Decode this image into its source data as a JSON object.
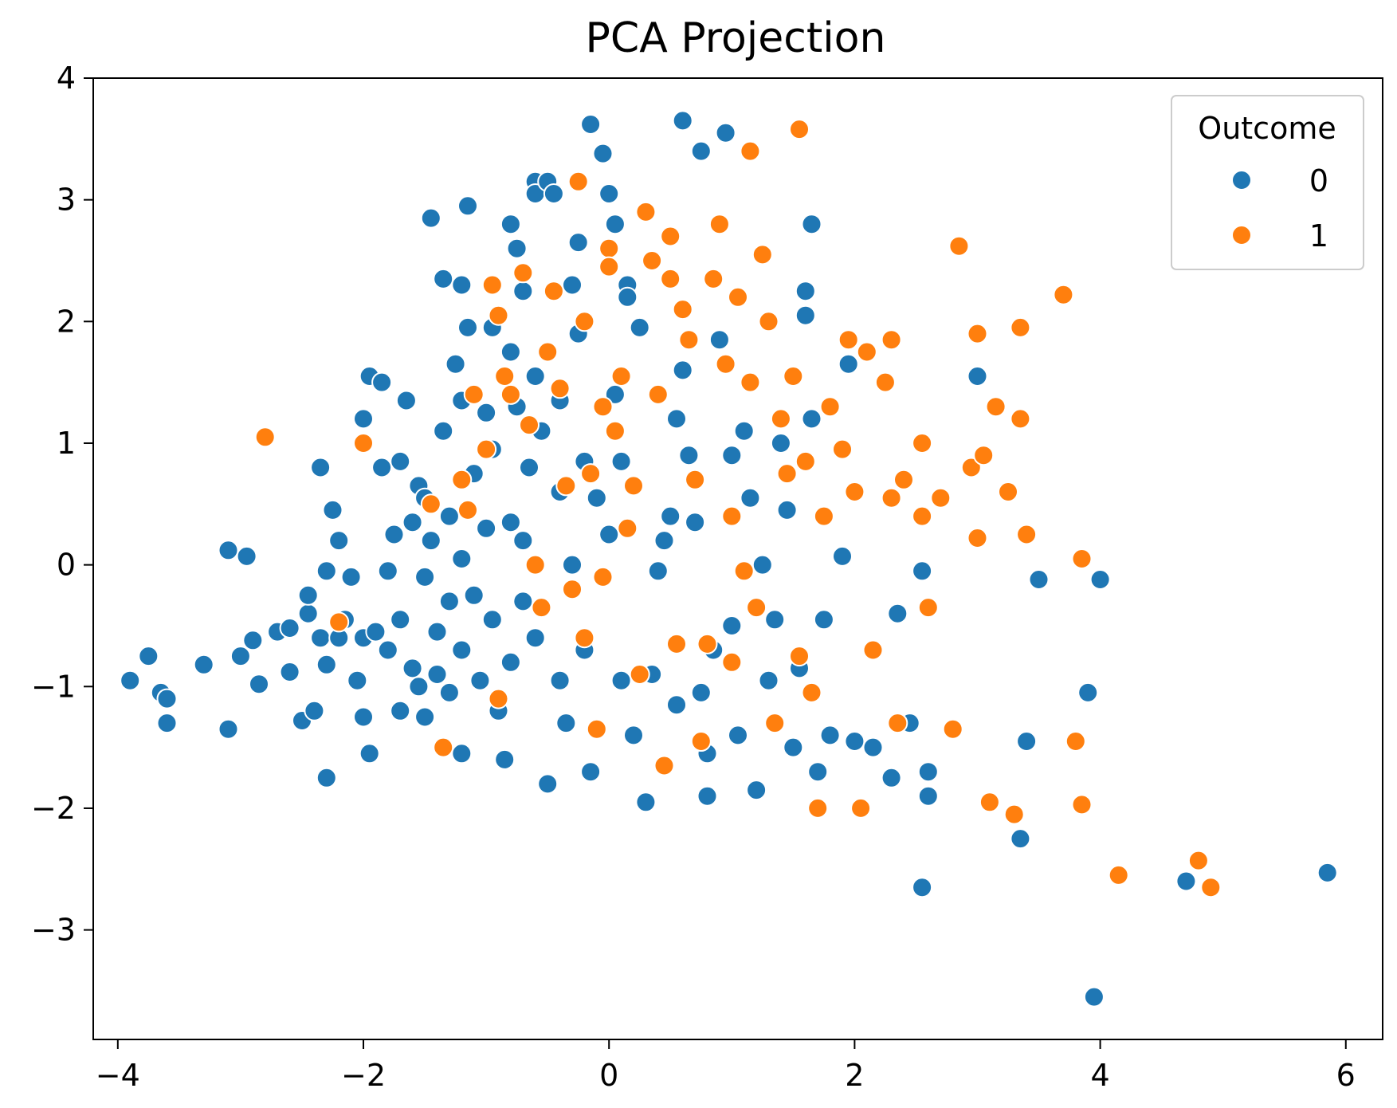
{
  "chart_data": {
    "type": "scatter",
    "title": "PCA Projection",
    "xlabel": "",
    "ylabel": "",
    "xlim": [
      -4.2,
      6.3
    ],
    "ylim": [
      -3.9,
      4.0
    ],
    "x_ticks": [
      -4,
      -2,
      0,
      2,
      4,
      6
    ],
    "y_ticks": [
      -3,
      -2,
      -1,
      0,
      1,
      2,
      3,
      4
    ],
    "x_tick_labels": [
      "−4",
      "−2",
      "0",
      "2",
      "4",
      "6"
    ],
    "y_tick_labels": [
      "−3",
      "−2",
      "−1",
      "0",
      "1",
      "2",
      "3",
      "4"
    ],
    "grid": false,
    "legend": {
      "title": "Outcome",
      "position": "top-right"
    },
    "series": [
      {
        "name": "0",
        "color": "#1f77b4",
        "points": [
          [
            -3.9,
            -0.95
          ],
          [
            -3.75,
            -0.75
          ],
          [
            -3.65,
            -1.05
          ],
          [
            -3.6,
            -1.1
          ],
          [
            -3.6,
            -1.3
          ],
          [
            -3.3,
            -0.82
          ],
          [
            -3.1,
            0.12
          ],
          [
            -3.1,
            -1.35
          ],
          [
            -3.0,
            -0.75
          ],
          [
            -2.95,
            0.07
          ],
          [
            -2.9,
            -0.62
          ],
          [
            -2.85,
            -0.98
          ],
          [
            -2.7,
            -0.55
          ],
          [
            -2.6,
            -0.52
          ],
          [
            -2.6,
            -0.88
          ],
          [
            -2.5,
            -1.28
          ],
          [
            -2.45,
            -0.4
          ],
          [
            -2.45,
            -0.25
          ],
          [
            -2.4,
            -1.2
          ],
          [
            -2.35,
            0.8
          ],
          [
            -2.35,
            -0.6
          ],
          [
            -2.3,
            -0.05
          ],
          [
            -2.3,
            -0.82
          ],
          [
            -2.3,
            -1.75
          ],
          [
            -2.25,
            0.45
          ],
          [
            -2.2,
            0.2
          ],
          [
            -2.2,
            -0.6
          ],
          [
            -2.15,
            -0.45
          ],
          [
            -2.1,
            -0.1
          ],
          [
            -2.05,
            -0.95
          ],
          [
            -2.0,
            1.2
          ],
          [
            -2.0,
            -0.6
          ],
          [
            -2.0,
            -1.25
          ],
          [
            -1.95,
            1.55
          ],
          [
            -1.95,
            -1.55
          ],
          [
            -1.9,
            -0.55
          ],
          [
            -1.85,
            1.5
          ],
          [
            -1.85,
            0.8
          ],
          [
            -1.8,
            -0.7
          ],
          [
            -1.8,
            -0.05
          ],
          [
            -1.75,
            0.25
          ],
          [
            -1.7,
            0.85
          ],
          [
            -1.7,
            -0.45
          ],
          [
            -1.7,
            -1.2
          ],
          [
            -1.65,
            1.35
          ],
          [
            -1.6,
            0.35
          ],
          [
            -1.6,
            -0.85
          ],
          [
            -1.55,
            0.65
          ],
          [
            -1.55,
            -1.0
          ],
          [
            -1.5,
            0.55
          ],
          [
            -1.5,
            -0.1
          ],
          [
            -1.5,
            -1.25
          ],
          [
            -1.45,
            2.85
          ],
          [
            -1.45,
            0.2
          ],
          [
            -1.4,
            -0.55
          ],
          [
            -1.4,
            -0.9
          ],
          [
            -1.35,
            2.35
          ],
          [
            -1.35,
            1.1
          ],
          [
            -1.3,
            0.4
          ],
          [
            -1.3,
            -0.3
          ],
          [
            -1.3,
            -1.05
          ],
          [
            -1.25,
            1.65
          ],
          [
            -1.2,
            2.3
          ],
          [
            -1.2,
            1.35
          ],
          [
            -1.2,
            0.05
          ],
          [
            -1.2,
            -0.7
          ],
          [
            -1.2,
            -1.55
          ],
          [
            -1.15,
            2.95
          ],
          [
            -1.15,
            1.95
          ],
          [
            -1.1,
            0.75
          ],
          [
            -1.1,
            -0.25
          ],
          [
            -1.05,
            -0.95
          ],
          [
            -1.0,
            1.25
          ],
          [
            -1.0,
            0.3
          ],
          [
            -0.95,
            1.95
          ],
          [
            -0.95,
            0.95
          ],
          [
            -0.95,
            -0.45
          ],
          [
            -0.9,
            -1.2
          ],
          [
            -0.85,
            -1.6
          ],
          [
            -0.8,
            2.8
          ],
          [
            -0.8,
            1.75
          ],
          [
            -0.8,
            0.35
          ],
          [
            -0.8,
            -0.8
          ],
          [
            -0.75,
            2.6
          ],
          [
            -0.75,
            1.3
          ],
          [
            -0.7,
            2.25
          ],
          [
            -0.7,
            0.2
          ],
          [
            -0.7,
            -0.3
          ],
          [
            -0.65,
            0.8
          ],
          [
            -0.6,
            3.15
          ],
          [
            -0.6,
            3.05
          ],
          [
            -0.6,
            1.55
          ],
          [
            -0.6,
            -0.6
          ],
          [
            -0.55,
            1.1
          ],
          [
            -0.5,
            3.15
          ],
          [
            -0.5,
            -1.8
          ],
          [
            -0.45,
            3.05
          ],
          [
            -0.45,
            2.25
          ],
          [
            -0.4,
            1.35
          ],
          [
            -0.4,
            0.6
          ],
          [
            -0.4,
            -0.95
          ],
          [
            -0.35,
            -1.3
          ],
          [
            -0.3,
            2.3
          ],
          [
            -0.3,
            0.0
          ],
          [
            -0.25,
            2.65
          ],
          [
            -0.25,
            1.9
          ],
          [
            -0.2,
            0.85
          ],
          [
            -0.2,
            -0.7
          ],
          [
            -0.15,
            3.62
          ],
          [
            -0.15,
            -1.7
          ],
          [
            -0.1,
            0.55
          ],
          [
            -0.05,
            3.38
          ],
          [
            -0.05,
            -0.1
          ],
          [
            0.0,
            3.05
          ],
          [
            0.0,
            0.25
          ],
          [
            0.05,
            2.8
          ],
          [
            0.05,
            1.4
          ],
          [
            0.1,
            0.85
          ],
          [
            0.1,
            -0.95
          ],
          [
            0.15,
            2.3
          ],
          [
            0.15,
            2.2
          ],
          [
            0.2,
            -1.4
          ],
          [
            0.25,
            1.95
          ],
          [
            0.3,
            -1.95
          ],
          [
            0.35,
            -0.9
          ],
          [
            0.4,
            -0.05
          ],
          [
            0.45,
            0.2
          ],
          [
            0.5,
            0.4
          ],
          [
            0.55,
            1.2
          ],
          [
            0.55,
            -1.15
          ],
          [
            0.6,
            3.65
          ],
          [
            0.6,
            1.6
          ],
          [
            0.65,
            0.9
          ],
          [
            0.7,
            0.35
          ],
          [
            0.75,
            3.4
          ],
          [
            0.75,
            -1.05
          ],
          [
            0.8,
            -1.55
          ],
          [
            0.8,
            -1.9
          ],
          [
            0.85,
            -0.7
          ],
          [
            0.9,
            1.85
          ],
          [
            0.95,
            3.55
          ],
          [
            1.0,
            0.9
          ],
          [
            1.0,
            -0.5
          ],
          [
            1.05,
            -1.4
          ],
          [
            1.1,
            1.1
          ],
          [
            1.15,
            0.55
          ],
          [
            1.2,
            -1.85
          ],
          [
            1.25,
            0.0
          ],
          [
            1.3,
            -0.95
          ],
          [
            1.35,
            -0.45
          ],
          [
            1.4,
            1.0
          ],
          [
            1.45,
            0.45
          ],
          [
            1.5,
            -1.5
          ],
          [
            1.55,
            -0.85
          ],
          [
            1.6,
            2.25
          ],
          [
            1.6,
            2.05
          ],
          [
            1.65,
            2.8
          ],
          [
            1.65,
            1.2
          ],
          [
            1.7,
            -1.7
          ],
          [
            1.75,
            -0.45
          ],
          [
            1.8,
            -1.4
          ],
          [
            1.9,
            0.07
          ],
          [
            1.95,
            1.65
          ],
          [
            2.0,
            -1.45
          ],
          [
            2.15,
            -1.5
          ],
          [
            2.3,
            -1.75
          ],
          [
            2.35,
            -0.4
          ],
          [
            2.45,
            -1.3
          ],
          [
            2.55,
            -0.05
          ],
          [
            2.55,
            -2.65
          ],
          [
            2.6,
            -1.9
          ],
          [
            2.6,
            -1.7
          ],
          [
            3.0,
            1.55
          ],
          [
            3.35,
            -2.25
          ],
          [
            3.4,
            -1.45
          ],
          [
            3.5,
            -0.12
          ],
          [
            3.9,
            -1.05
          ],
          [
            3.95,
            -3.55
          ],
          [
            4.0,
            -0.12
          ],
          [
            4.7,
            -2.6
          ],
          [
            5.85,
            -2.53
          ]
        ]
      },
      {
        "name": "1",
        "color": "#ff7f0e",
        "points": [
          [
            -2.8,
            1.05
          ],
          [
            -2.2,
            -0.47
          ],
          [
            -2.0,
            1.0
          ],
          [
            -1.45,
            0.5
          ],
          [
            -1.35,
            -1.5
          ],
          [
            -1.2,
            0.7
          ],
          [
            -1.15,
            0.45
          ],
          [
            -1.1,
            1.4
          ],
          [
            -1.0,
            0.95
          ],
          [
            -0.95,
            2.3
          ],
          [
            -0.9,
            2.05
          ],
          [
            -0.9,
            -1.1
          ],
          [
            -0.85,
            1.55
          ],
          [
            -0.8,
            1.4
          ],
          [
            -0.7,
            2.4
          ],
          [
            -0.65,
            1.15
          ],
          [
            -0.6,
            0.0
          ],
          [
            -0.55,
            -0.35
          ],
          [
            -0.5,
            1.75
          ],
          [
            -0.45,
            2.25
          ],
          [
            -0.4,
            1.45
          ],
          [
            -0.35,
            0.65
          ],
          [
            -0.3,
            -0.2
          ],
          [
            -0.25,
            3.15
          ],
          [
            -0.2,
            2.0
          ],
          [
            -0.2,
            -0.6
          ],
          [
            -0.15,
            0.75
          ],
          [
            -0.1,
            -1.35
          ],
          [
            -0.05,
            1.3
          ],
          [
            -0.05,
            -0.1
          ],
          [
            0.0,
            2.6
          ],
          [
            0.0,
            2.45
          ],
          [
            0.05,
            1.1
          ],
          [
            0.1,
            1.55
          ],
          [
            0.15,
            0.3
          ],
          [
            0.2,
            0.65
          ],
          [
            0.25,
            -0.9
          ],
          [
            0.3,
            2.9
          ],
          [
            0.35,
            2.5
          ],
          [
            0.4,
            1.4
          ],
          [
            0.45,
            -1.65
          ],
          [
            0.5,
            2.7
          ],
          [
            0.5,
            2.35
          ],
          [
            0.55,
            -0.65
          ],
          [
            0.6,
            2.1
          ],
          [
            0.65,
            1.85
          ],
          [
            0.7,
            0.7
          ],
          [
            0.75,
            -1.45
          ],
          [
            0.8,
            -0.65
          ],
          [
            0.85,
            2.35
          ],
          [
            0.9,
            2.8
          ],
          [
            0.95,
            1.65
          ],
          [
            1.0,
            0.4
          ],
          [
            1.0,
            -0.8
          ],
          [
            1.05,
            2.2
          ],
          [
            1.1,
            -0.05
          ],
          [
            1.15,
            3.4
          ],
          [
            1.15,
            1.5
          ],
          [
            1.2,
            -0.35
          ],
          [
            1.25,
            2.55
          ],
          [
            1.3,
            2.0
          ],
          [
            1.35,
            -1.3
          ],
          [
            1.4,
            1.2
          ],
          [
            1.45,
            0.75
          ],
          [
            1.5,
            1.55
          ],
          [
            1.55,
            -0.75
          ],
          [
            1.55,
            3.58
          ],
          [
            1.6,
            0.85
          ],
          [
            1.65,
            -1.05
          ],
          [
            1.7,
            -2.0
          ],
          [
            1.75,
            0.4
          ],
          [
            1.8,
            1.3
          ],
          [
            1.9,
            0.95
          ],
          [
            1.95,
            1.85
          ],
          [
            2.0,
            0.6
          ],
          [
            2.05,
            -2.0
          ],
          [
            2.1,
            1.75
          ],
          [
            2.15,
            -0.7
          ],
          [
            2.25,
            1.5
          ],
          [
            2.3,
            1.85
          ],
          [
            2.3,
            0.55
          ],
          [
            2.35,
            -1.3
          ],
          [
            2.4,
            0.7
          ],
          [
            2.55,
            1.0
          ],
          [
            2.55,
            0.4
          ],
          [
            2.6,
            -0.35
          ],
          [
            2.7,
            0.55
          ],
          [
            2.8,
            -1.35
          ],
          [
            2.85,
            2.62
          ],
          [
            2.95,
            0.8
          ],
          [
            3.0,
            1.9
          ],
          [
            3.0,
            0.22
          ],
          [
            3.05,
            0.9
          ],
          [
            3.1,
            -1.95
          ],
          [
            3.15,
            1.3
          ],
          [
            3.25,
            0.6
          ],
          [
            3.3,
            -2.05
          ],
          [
            3.35,
            1.95
          ],
          [
            3.35,
            1.2
          ],
          [
            3.4,
            0.25
          ],
          [
            3.7,
            2.22
          ],
          [
            3.8,
            -1.45
          ],
          [
            3.85,
            0.05
          ],
          [
            3.85,
            -1.97
          ],
          [
            4.15,
            -2.55
          ],
          [
            4.8,
            -2.43
          ],
          [
            4.9,
            -2.65
          ]
        ]
      }
    ]
  }
}
